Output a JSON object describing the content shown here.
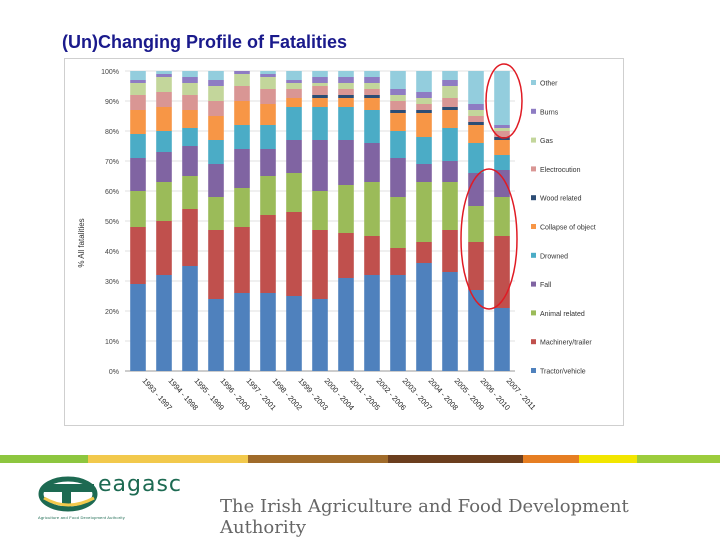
{
  "slide": {
    "title": "(Un)Changing Profile of Fatalities",
    "footer_text": "The Irish Agriculture and Food Development Authority",
    "logo_word": "eagasc",
    "logo_sub": "Agriculture and Food Development Authority",
    "stripe_colors": [
      "#8dc63f",
      "#f2c94c",
      "#a06b2a",
      "#6b3e1e",
      "#e67e22",
      "#f2e600",
      "#9ccc3c"
    ]
  },
  "chart_data": {
    "type": "bar",
    "stacked": true,
    "title": "",
    "xlabel": "",
    "ylabel": "% All fatalities",
    "ylim": [
      0,
      100
    ],
    "yticks": [
      "0%",
      "10%",
      "20%",
      "30%",
      "40%",
      "50%",
      "60%",
      "70%",
      "80%",
      "90%",
      "100%"
    ],
    "grid": true,
    "legend_position": "right",
    "categories": [
      "1993 - 1997",
      "1994 - 1998",
      "1995 - 1999",
      "1996 - 2000",
      "1997 - 2001",
      "1998 - 2002",
      "1999 - 2003",
      "2000 - 2004",
      "2001 - 2005",
      "2002 - 2006",
      "2003 - 2007",
      "2004 - 2008",
      "2005 - 2009",
      "2006 - 2010",
      "2007 - 2011"
    ],
    "series": [
      {
        "name": "Tractor/vehicle",
        "color": "#4f81bd",
        "values": [
          29,
          32,
          35,
          24,
          26,
          26,
          25,
          24,
          31,
          32,
          32,
          36,
          33,
          27,
          21
        ]
      },
      {
        "name": "Machinery/trailer",
        "color": "#c0504d",
        "values": [
          19,
          18,
          19,
          23,
          22,
          26,
          28,
          23,
          15,
          13,
          9,
          7,
          14,
          16,
          24
        ]
      },
      {
        "name": "Animal related",
        "color": "#9bbb59",
        "values": [
          12,
          13,
          11,
          11,
          13,
          13,
          13,
          13,
          16,
          18,
          17,
          20,
          16,
          12,
          13
        ]
      },
      {
        "name": "Fall",
        "color": "#8064a2",
        "values": [
          11,
          10,
          10,
          11,
          13,
          9,
          11,
          17,
          15,
          13,
          13,
          6,
          7,
          11,
          9
        ]
      },
      {
        "name": "Drowned",
        "color": "#4bacc6",
        "values": [
          8,
          7,
          6,
          8,
          8,
          8,
          11,
          11,
          11,
          11,
          9,
          9,
          11,
          10,
          5
        ]
      },
      {
        "name": "Collapse of object",
        "color": "#f79646",
        "values": [
          8,
          8,
          6,
          8,
          8,
          7,
          3,
          3,
          3,
          4,
          6,
          8,
          6,
          6,
          5
        ]
      },
      {
        "name": "Wood related",
        "color": "#2c4d75",
        "values": [
          0,
          0,
          0,
          0,
          0,
          0,
          0,
          1,
          1,
          1,
          1,
          1,
          1,
          1,
          1
        ]
      },
      {
        "name": "Electrocution",
        "color": "#d99694",
        "values": [
          5,
          5,
          5,
          5,
          5,
          5,
          3,
          3,
          2,
          2,
          3,
          2,
          3,
          2,
          2
        ]
      },
      {
        "name": "Gas",
        "color": "#c3d69b",
        "values": [
          4,
          5,
          4,
          5,
          4,
          4,
          2,
          1,
          2,
          2,
          2,
          2,
          4,
          2,
          1
        ]
      },
      {
        "name": "Burns",
        "color": "#8e7cc3",
        "values": [
          1,
          1,
          2,
          2,
          1,
          1,
          1,
          2,
          2,
          2,
          2,
          2,
          2,
          2,
          1
        ]
      },
      {
        "name": "Other",
        "color": "#93cddd",
        "values": [
          3,
          1,
          2,
          3,
          0,
          1,
          3,
          2,
          2,
          2,
          6,
          7,
          3,
          11,
          18
        ]
      }
    ],
    "legend_order": [
      "Other",
      "Burns",
      "Gas",
      "Electrocution",
      "Wood related",
      "Collapse of object",
      "Drowned",
      "Fall",
      "Animal related",
      "Machinery/trailer",
      "Tractor/vehicle"
    ]
  }
}
